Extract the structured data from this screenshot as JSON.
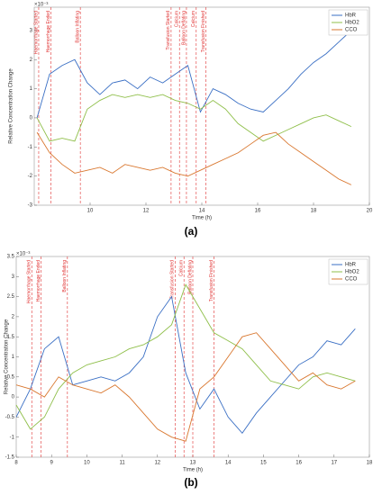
{
  "chart_data": [
    {
      "type": "line",
      "panel_label": "(a)",
      "x_label": "Time (h)",
      "y_label": "Relative Concentration Change",
      "exponent_label": "×10⁻³",
      "xlim": [
        8,
        20
      ],
      "xticks": [
        10,
        12,
        14,
        16,
        18,
        20
      ],
      "ylim": [
        -3,
        3.8
      ],
      "yticks": [
        -3,
        -2,
        -1,
        0,
        1,
        2,
        3
      ],
      "legend": "top-right",
      "x": [
        8.1,
        8.55,
        9.0,
        9.45,
        9.9,
        10.35,
        10.8,
        11.25,
        11.7,
        12.15,
        12.6,
        13.05,
        13.5,
        13.95,
        14.4,
        14.85,
        15.3,
        15.75,
        16.2,
        16.65,
        17.1,
        17.55,
        18.0,
        18.45,
        18.9,
        19.35
      ],
      "series": [
        {
          "name": "HbR",
          "color": "#3a6fc4",
          "values": [
            0,
            1.5,
            1.8,
            2.0,
            1.2,
            0.8,
            1.2,
            1.3,
            1.0,
            1.4,
            1.2,
            1.5,
            1.8,
            0.2,
            1.0,
            0.8,
            0.5,
            0.3,
            0.2,
            0.6,
            1.0,
            1.5,
            1.9,
            2.2,
            2.6,
            3.0
          ]
        },
        {
          "name": "HbO2",
          "color": "#8fbf4a",
          "values": [
            0,
            -0.8,
            -0.7,
            -0.8,
            0.3,
            0.6,
            0.8,
            0.7,
            0.8,
            0.7,
            0.8,
            0.6,
            0.5,
            0.3,
            0.6,
            0.3,
            -0.2,
            -0.5,
            -0.8,
            -0.6,
            -0.4,
            -0.2,
            0,
            0.1,
            -0.1,
            -0.3
          ]
        },
        {
          "name": "CCO",
          "color": "#d9772f",
          "values": [
            -0.5,
            -1.2,
            -1.6,
            -1.9,
            -1.8,
            -1.7,
            -1.9,
            -1.6,
            -1.7,
            -1.8,
            -1.7,
            -1.9,
            -2.0,
            -1.8,
            -1.6,
            -1.4,
            -1.2,
            -0.9,
            -0.6,
            -0.5,
            -0.9,
            -1.2,
            -1.5,
            -1.8,
            -2.1,
            -2.3
          ]
        }
      ],
      "annotations": [
        {
          "x": 8.16,
          "label": "Haemorrhage Started"
        },
        {
          "x": 8.6,
          "label": "Haemorrhage Ended"
        },
        {
          "x": 9.65,
          "label": "Balloon Inflating"
        },
        {
          "x": 12.9,
          "label": "Transfusion Started"
        },
        {
          "x": 13.2,
          "label": "Calcium"
        },
        {
          "x": 13.45,
          "label": "Balloon Deflating"
        },
        {
          "x": 13.8,
          "label": "Calcium"
        },
        {
          "x": 14.15,
          "label": "Transfusion Finished"
        }
      ]
    },
    {
      "type": "line",
      "panel_label": "(b)",
      "x_label": "Time (h)",
      "y_label": "Relative Concentration Change",
      "exponent_label": "×10⁻³",
      "xlim": [
        8,
        18
      ],
      "xticks": [
        8,
        9,
        10,
        11,
        12,
        13,
        14,
        15,
        16,
        17,
        18
      ],
      "ylim": [
        -1.5,
        3.5
      ],
      "yticks": [
        -1.5,
        -1,
        -0.5,
        0,
        0.5,
        1,
        1.5,
        2,
        2.5,
        3,
        3.5
      ],
      "legend": "top-right",
      "x": [
        8.0,
        8.4,
        8.8,
        9.2,
        9.6,
        10.0,
        10.4,
        10.8,
        11.2,
        11.6,
        12.0,
        12.4,
        12.8,
        13.2,
        13.6,
        14.0,
        14.4,
        14.8,
        15.2,
        15.6,
        16.0,
        16.4,
        16.8,
        17.2,
        17.6
      ],
      "series": [
        {
          "name": "HbR",
          "color": "#3a6fc4",
          "values": [
            -0.5,
            0.2,
            1.2,
            1.5,
            0.3,
            0.4,
            0.5,
            0.4,
            0.6,
            1.0,
            2.0,
            2.5,
            0.6,
            -0.3,
            0.2,
            -0.5,
            -0.9,
            -0.4,
            0.0,
            0.4,
            0.8,
            1.0,
            1.4,
            1.3,
            1.7
          ]
        },
        {
          "name": "HbO2",
          "color": "#8fbf4a",
          "values": [
            -0.2,
            -0.8,
            -0.5,
            0.2,
            0.6,
            0.8,
            0.9,
            1.0,
            1.2,
            1.3,
            1.5,
            1.8,
            2.8,
            2.2,
            1.6,
            1.4,
            1.2,
            0.8,
            0.4,
            0.3,
            0.2,
            0.5,
            0.6,
            0.5,
            0.4
          ]
        },
        {
          "name": "CCO",
          "color": "#d9772f",
          "values": [
            0.3,
            0.2,
            0.0,
            0.5,
            0.3,
            0.2,
            0.1,
            0.3,
            0.0,
            -0.4,
            -0.8,
            -1.0,
            -1.1,
            0.2,
            0.5,
            1.0,
            1.5,
            1.6,
            1.2,
            0.8,
            0.4,
            0.6,
            0.3,
            0.2,
            0.4
          ]
        }
      ],
      "annotations": [
        {
          "x": 8.44,
          "label": "Haemorrhage Started"
        },
        {
          "x": 8.7,
          "label": "Haemorrhage Ended"
        },
        {
          "x": 9.45,
          "label": "Balloon Inflating"
        },
        {
          "x": 12.5,
          "label": "Transfusion Started"
        },
        {
          "x": 12.75,
          "label": "Calcium"
        },
        {
          "x": 13.0,
          "label": "Balloon Deflating"
        },
        {
          "x": 13.6,
          "label": "Transfusion Finished"
        }
      ]
    }
  ]
}
